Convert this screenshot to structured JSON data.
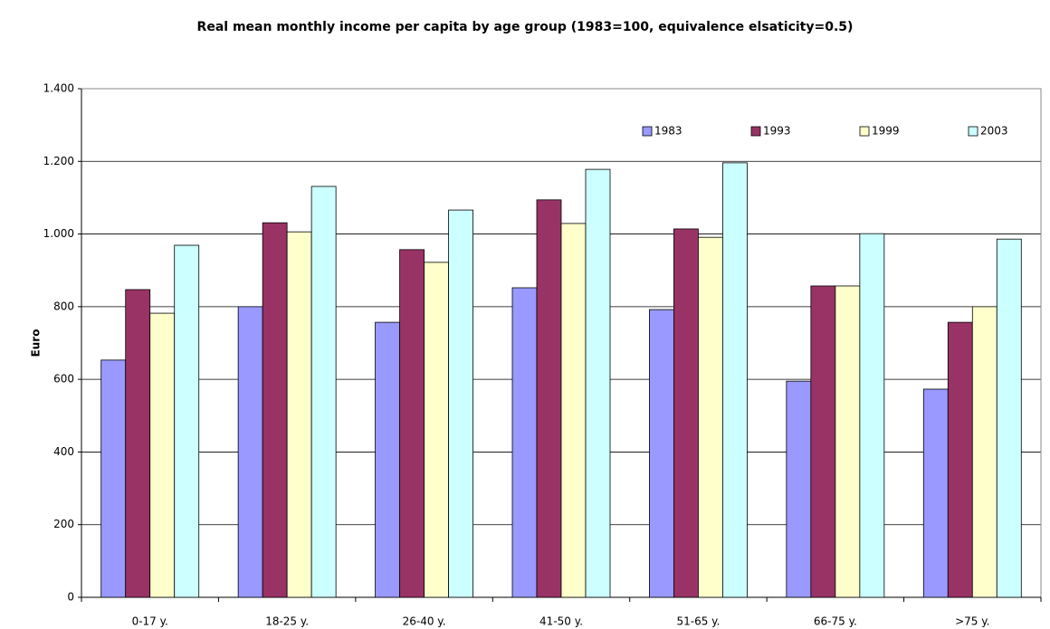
{
  "chart_data": {
    "type": "bar",
    "title": "Real mean monthly income per capita by age group (1983=100, equivalence elsaticity=0.5)",
    "y_label": "Euro",
    "categories": [
      "0-17 y.",
      "18-25 y.",
      "26-40 y.",
      "41-50 y.",
      "51-65 y.",
      "66-75 y.",
      ">75 y."
    ],
    "series": [
      {
        "name": "1983",
        "color": "#9999ff",
        "values": [
          653,
          800,
          757,
          852,
          792,
          595,
          573
        ]
      },
      {
        "name": "1993",
        "color": "#993366",
        "values": [
          847,
          1031,
          957,
          1094,
          1014,
          857,
          757
        ]
      },
      {
        "name": "1999",
        "color": "#ffffcc",
        "values": [
          782,
          1006,
          922,
          1029,
          991,
          857,
          800
        ]
      },
      {
        "name": "2003",
        "color": "#ccffff",
        "values": [
          969,
          1131,
          1066,
          1178,
          1196,
          1001,
          986
        ]
      }
    ],
    "ylim": [
      0,
      1400
    ],
    "yticks": [
      0,
      200,
      400,
      600,
      800,
      {
        "value": 1000,
        "label": "1.000"
      },
      {
        "value": 1200,
        "label": "1.200"
      },
      {
        "value": 1400,
        "label": "1.400"
      }
    ],
    "grid": true,
    "legend": "upper right"
  }
}
